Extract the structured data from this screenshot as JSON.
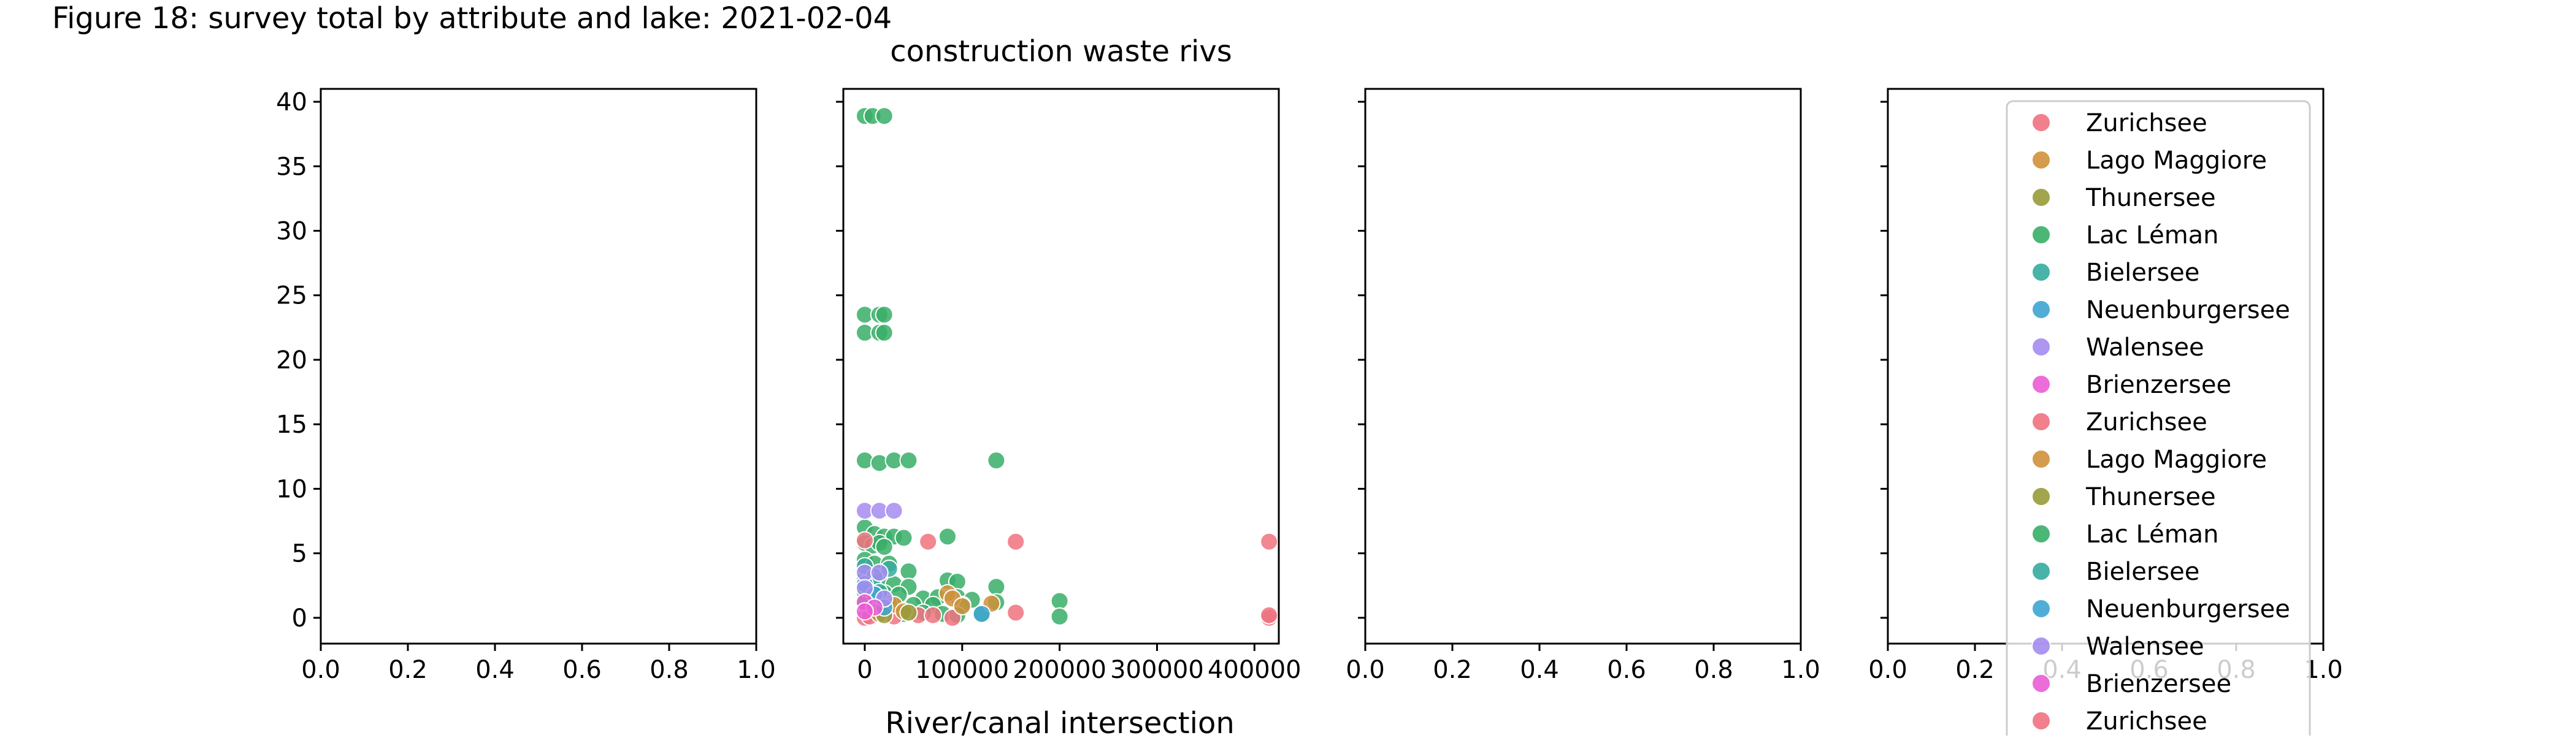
{
  "figure": {
    "title": "Figure 18: survey total by attribute and lake: 2021-02-04",
    "xlabel": "River/canal intersection"
  },
  "legend": {
    "placement": "inside-right of last panel",
    "entries": [
      {
        "label": "Zurichsee",
        "color": "#f0727f"
      },
      {
        "label": "Lago Maggiore",
        "color": "#d0913a"
      },
      {
        "label": "Thunersee",
        "color": "#999b3a"
      },
      {
        "label": "Lac Léman",
        "color": "#38ae67"
      },
      {
        "label": "Bielersee",
        "color": "#36ab9f"
      },
      {
        "label": "Neuenburgersee",
        "color": "#3da5d1"
      },
      {
        "label": "Walensee",
        "color": "#a48cf0"
      },
      {
        "label": "Brienzersee",
        "color": "#ea5cd6"
      },
      {
        "label": "Zurichsee",
        "color": "#f0727f"
      },
      {
        "label": "Lago Maggiore",
        "color": "#d0913a"
      },
      {
        "label": "Thunersee",
        "color": "#999b3a"
      },
      {
        "label": "Lac Léman",
        "color": "#38ae67"
      },
      {
        "label": "Bielersee",
        "color": "#36ab9f"
      },
      {
        "label": "Neuenburgersee",
        "color": "#3da5d1"
      },
      {
        "label": "Walensee",
        "color": "#a48cf0"
      },
      {
        "label": "Brienzersee",
        "color": "#ea5cd6"
      },
      {
        "label": "Zurichsee",
        "color": "#f0727f"
      }
    ]
  },
  "chart_data": [
    {
      "type": "scatter",
      "title": "",
      "xlabel": "",
      "ylabel": "",
      "xlim": [
        0,
        1
      ],
      "ylim": [
        -2,
        41
      ],
      "xticks": [
        0.0,
        0.2,
        0.4,
        0.6,
        0.8,
        1.0
      ],
      "xtick_labels": [
        "0.0",
        "0.2",
        "0.4",
        "0.6",
        "0.8",
        "1.0"
      ],
      "yticks": [
        0,
        5,
        10,
        15,
        20,
        25,
        30,
        35,
        40
      ],
      "ytick_labels": [
        "0",
        "5",
        "10",
        "15",
        "20",
        "25",
        "30",
        "35",
        "40"
      ],
      "show_ytick_labels": true,
      "grid": false,
      "points": []
    },
    {
      "type": "scatter",
      "title": "construction waste rivs",
      "xlabel": "",
      "ylabel": "",
      "xlim": [
        -22000,
        425000
      ],
      "ylim": [
        -2,
        41
      ],
      "xticks": [
        0,
        100000,
        200000,
        300000,
        400000
      ],
      "xtick_labels": [
        "0",
        "100000",
        "200000",
        "300000",
        "400000"
      ],
      "yticks": [
        0,
        5,
        10,
        15,
        20,
        25,
        30,
        35,
        40
      ],
      "ytick_labels": [
        "0",
        "5",
        "10",
        "15",
        "20",
        "25",
        "30",
        "35",
        "40"
      ],
      "show_ytick_labels": false,
      "grid": false,
      "series": [
        {
          "lake": "Lac Léman",
          "color": "#38ae67",
          "points": [
            [
              0,
              38.9
            ],
            [
              8000,
              38.9
            ],
            [
              20000,
              38.9
            ],
            [
              0,
              23.5
            ],
            [
              15000,
              23.5
            ],
            [
              20000,
              23.5
            ],
            [
              0,
              22.1
            ],
            [
              15000,
              22.1
            ],
            [
              20000,
              22.1
            ],
            [
              0,
              12.2
            ],
            [
              15000,
              12.0
            ],
            [
              30000,
              12.2
            ],
            [
              45000,
              12.2
            ],
            [
              135000,
              12.2
            ],
            [
              0,
              7.0
            ],
            [
              10000,
              6.5
            ],
            [
              20000,
              6.3
            ],
            [
              30000,
              6.3
            ],
            [
              40000,
              6.2
            ],
            [
              85000,
              6.3
            ],
            [
              0,
              5.8
            ],
            [
              8000,
              5.6
            ],
            [
              15000,
              5.8
            ],
            [
              20000,
              5.5
            ],
            [
              0,
              4.5
            ],
            [
              10000,
              4.2
            ],
            [
              25000,
              4.2
            ],
            [
              45000,
              3.6
            ],
            [
              0,
              3.0
            ],
            [
              15000,
              2.8
            ],
            [
              30000,
              2.6
            ],
            [
              45000,
              2.4
            ],
            [
              85000,
              2.9
            ],
            [
              95000,
              2.8
            ],
            [
              135000,
              2.4
            ],
            [
              0,
              2.0
            ],
            [
              20000,
              1.9
            ],
            [
              35000,
              1.8
            ],
            [
              60000,
              1.5
            ],
            [
              75000,
              1.6
            ],
            [
              95000,
              1.6
            ],
            [
              110000,
              1.4
            ],
            [
              0,
              1.2
            ],
            [
              25000,
              1.1
            ],
            [
              50000,
              1.0
            ],
            [
              70000,
              1.0
            ],
            [
              100000,
              1.0
            ],
            [
              135000,
              1.2
            ],
            [
              200000,
              1.3
            ],
            [
              10000,
              0.5
            ],
            [
              40000,
              0.3
            ],
            [
              60000,
              0.4
            ],
            [
              80000,
              0.3
            ],
            [
              95000,
              0.2
            ],
            [
              120000,
              0.3
            ],
            [
              200000,
              0.1
            ]
          ]
        },
        {
          "lake": "Zurichsee",
          "color": "#f0727f",
          "points": [
            [
              0,
              6.0
            ],
            [
              65000,
              5.9
            ],
            [
              155000,
              5.9
            ],
            [
              415000,
              5.9
            ],
            [
              0,
              0.0
            ],
            [
              5000,
              0.1
            ],
            [
              30000,
              0.1
            ],
            [
              55000,
              0.2
            ],
            [
              70000,
              0.2
            ],
            [
              90000,
              0.0
            ],
            [
              155000,
              0.4
            ],
            [
              415000,
              0.0
            ],
            [
              415000,
              0.2
            ]
          ]
        },
        {
          "lake": "Lago Maggiore",
          "color": "#d0913a",
          "points": [
            [
              15000,
              0.3
            ],
            [
              30000,
              1.0
            ],
            [
              40000,
              0.5
            ],
            [
              85000,
              1.9
            ],
            [
              90000,
              1.5
            ],
            [
              100000,
              0.9
            ],
            [
              130000,
              1.1
            ]
          ]
        },
        {
          "lake": "Thunersee",
          "color": "#999b3a",
          "points": [
            [
              20000,
              0.2
            ],
            [
              45000,
              0.4
            ]
          ]
        },
        {
          "lake": "Bielersee",
          "color": "#36ab9f",
          "points": [
            [
              0,
              4.0
            ],
            [
              10000,
              3.2
            ],
            [
              15000,
              2.0
            ],
            [
              25000,
              3.8
            ]
          ]
        },
        {
          "lake": "Neuenburgersee",
          "color": "#3da5d1",
          "points": [
            [
              0,
              2.6
            ],
            [
              10000,
              1.8
            ],
            [
              20000,
              0.8
            ],
            [
              120000,
              0.3
            ]
          ]
        },
        {
          "lake": "Walensee",
          "color": "#a48cf0",
          "points": [
            [
              0,
              8.3
            ],
            [
              15000,
              8.3
            ],
            [
              30000,
              8.3
            ],
            [
              0,
              3.5
            ],
            [
              15000,
              3.5
            ],
            [
              0,
              2.3
            ],
            [
              20000,
              1.5
            ]
          ]
        },
        {
          "lake": "Brienzersee",
          "color": "#ea5cd6",
          "points": [
            [
              0,
              1.2
            ],
            [
              10000,
              0.8
            ],
            [
              0,
              0.5
            ]
          ]
        }
      ]
    },
    {
      "type": "scatter",
      "title": "",
      "xlabel": "",
      "ylabel": "",
      "xlim": [
        0,
        1
      ],
      "ylim": [
        -2,
        41
      ],
      "xticks": [
        0.0,
        0.2,
        0.4,
        0.6,
        0.8,
        1.0
      ],
      "xtick_labels": [
        "0.0",
        "0.2",
        "0.4",
        "0.6",
        "0.8",
        "1.0"
      ],
      "yticks": [
        0,
        5,
        10,
        15,
        20,
        25,
        30,
        35,
        40
      ],
      "ytick_labels": [
        "0",
        "5",
        "10",
        "15",
        "20",
        "25",
        "30",
        "35",
        "40"
      ],
      "show_ytick_labels": false,
      "grid": false,
      "points": []
    },
    {
      "type": "scatter",
      "title": "",
      "xlabel": "",
      "ylabel": "",
      "xlim": [
        0,
        1
      ],
      "ylim": [
        -2,
        41
      ],
      "xticks": [
        0.0,
        0.2,
        0.4,
        0.6,
        0.8,
        1.0
      ],
      "xtick_labels": [
        "0.0",
        "0.2",
        "0.4",
        "0.6",
        "0.8",
        "1.0"
      ],
      "yticks": [
        0,
        5,
        10,
        15,
        20,
        25,
        30,
        35,
        40
      ],
      "ytick_labels": [
        "0",
        "5",
        "10",
        "15",
        "20",
        "25",
        "30",
        "35",
        "40"
      ],
      "show_ytick_labels": false,
      "grid": false,
      "points": []
    }
  ]
}
